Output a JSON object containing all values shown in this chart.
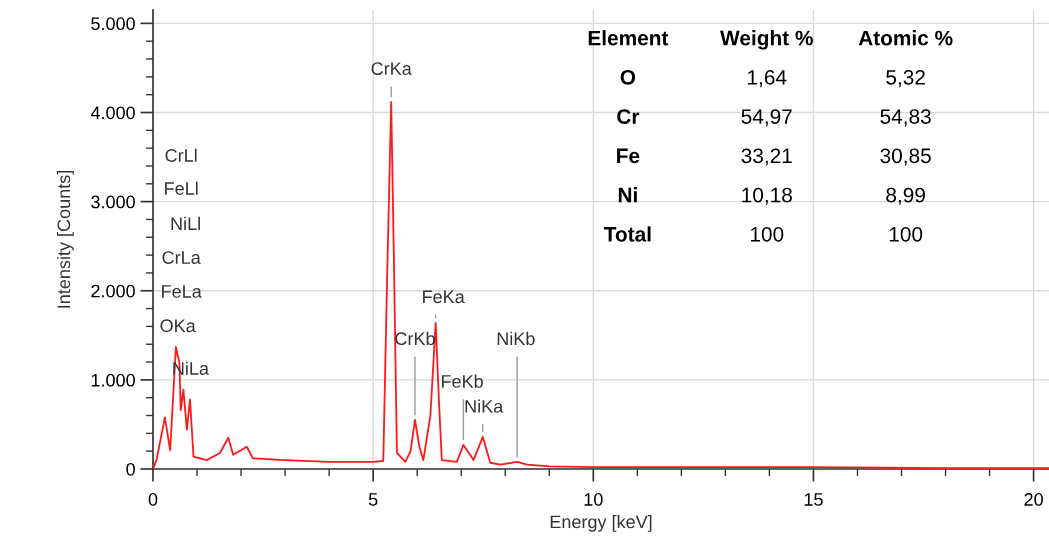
{
  "chart_data": {
    "type": "line",
    "xlabel": "Energy [keV]",
    "ylabel": "Intensity [Counts]",
    "xlim": [
      0,
      20.35
    ],
    "ylim": [
      0,
      5150
    ],
    "xticks": [
      0,
      {
        "value": 1,
        "label": null
      },
      {
        "value": 2,
        "label": null
      },
      {
        "value": 3,
        "label": null
      },
      {
        "value": 4,
        "label": null
      },
      5,
      {
        "value": 6,
        "label": null
      },
      {
        "value": 7,
        "label": null
      },
      {
        "value": 8,
        "label": null
      },
      {
        "value": 9,
        "label": null
      },
      10,
      {
        "value": 11,
        "label": null
      },
      {
        "value": 12,
        "label": null
      },
      {
        "value": 13,
        "label": null
      },
      {
        "value": 14,
        "label": null
      },
      15,
      {
        "value": 16,
        "label": null
      },
      {
        "value": 17,
        "label": null
      },
      {
        "value": 18,
        "label": null
      },
      {
        "value": 19,
        "label": null
      },
      20
    ],
    "yticks": [
      0,
      {
        "value": 200,
        "label": null
      },
      {
        "value": 400,
        "label": null
      },
      {
        "value": 600,
        "label": null
      },
      {
        "value": 800,
        "label": null
      },
      {
        "value": 1000,
        "label": "1.000"
      },
      {
        "value": 1200,
        "label": null
      },
      {
        "value": 1400,
        "label": null
      },
      {
        "value": 1600,
        "label": null
      },
      {
        "value": 1800,
        "label": null
      },
      {
        "value": 2000,
        "label": "2.000"
      },
      {
        "value": 2200,
        "label": null
      },
      {
        "value": 2400,
        "label": null
      },
      {
        "value": 2600,
        "label": null
      },
      {
        "value": 2800,
        "label": null
      },
      {
        "value": 3000,
        "label": "3.000"
      },
      {
        "value": 3200,
        "label": null
      },
      {
        "value": 3400,
        "label": null
      },
      {
        "value": 3600,
        "label": null
      },
      {
        "value": 3800,
        "label": null
      },
      {
        "value": 4000,
        "label": "4.000"
      },
      {
        "value": 4200,
        "label": null
      },
      {
        "value": 4400,
        "label": null
      },
      {
        "value": 4600,
        "label": null
      },
      {
        "value": 4800,
        "label": null
      },
      {
        "value": 5000,
        "label": "5.000"
      }
    ],
    "grid": true,
    "marker": "none",
    "line_style": "solid",
    "series": [
      {
        "color": "#ff1a1a",
        "x": [
          0,
          0.08,
          0.27,
          0.39,
          0.52,
          0.6,
          0.63,
          0.69,
          0.77,
          0.84,
          0.92,
          1.22,
          1.52,
          1.71,
          1.82,
          2.13,
          2.27,
          3,
          4,
          5,
          5.23,
          5.32,
          5.41,
          5.47,
          5.54,
          5.73,
          5.85,
          5.95,
          6.05,
          6.14,
          6.3,
          6.42,
          6.5,
          6.56,
          6.9,
          7.05,
          7.28,
          7.49,
          7.66,
          7.89,
          8.27,
          8.5,
          9,
          10,
          12,
          15,
          18,
          20.35
        ],
        "values": [
          0,
          100,
          580,
          210,
          1370,
          1190,
          660,
          890,
          440,
          780,
          140,
          100,
          180,
          350,
          160,
          250,
          120,
          100,
          80,
          80,
          90,
          2200,
          4120,
          2400,
          180,
          80,
          200,
          550,
          250,
          100,
          600,
          1640,
          700,
          100,
          80,
          270,
          100,
          360,
          70,
          50,
          80,
          50,
          30,
          20,
          20,
          20,
          10,
          10
        ]
      }
    ],
    "annotations": [
      "CrLl",
      "FeLl",
      "NiLl",
      "CrLa",
      "FeLa",
      "OKa",
      "NiLa",
      {
        "text": "CrKa",
        "x": 5.41,
        "y": 4120
      },
      {
        "text": "CrKb",
        "x": 5.95,
        "y": 550
      },
      {
        "text": "FeKa",
        "x": 6.42,
        "y": 1640
      },
      {
        "text": "FeKb",
        "x": 7.05,
        "y": 270
      },
      {
        "text": "NiKa",
        "x": 7.49,
        "y": 360
      },
      {
        "text": "NiKb",
        "x": 8.27,
        "y": 80
      },
      "Element",
      "Weight %",
      "Atomic %",
      "O",
      "1,64",
      "5,32",
      "Cr",
      "54,97",
      "54,83",
      "Fe",
      "33,21",
      "30,85",
      "Ni",
      "10,18",
      "8,99",
      "Total",
      "100",
      "100"
    ]
  }
}
